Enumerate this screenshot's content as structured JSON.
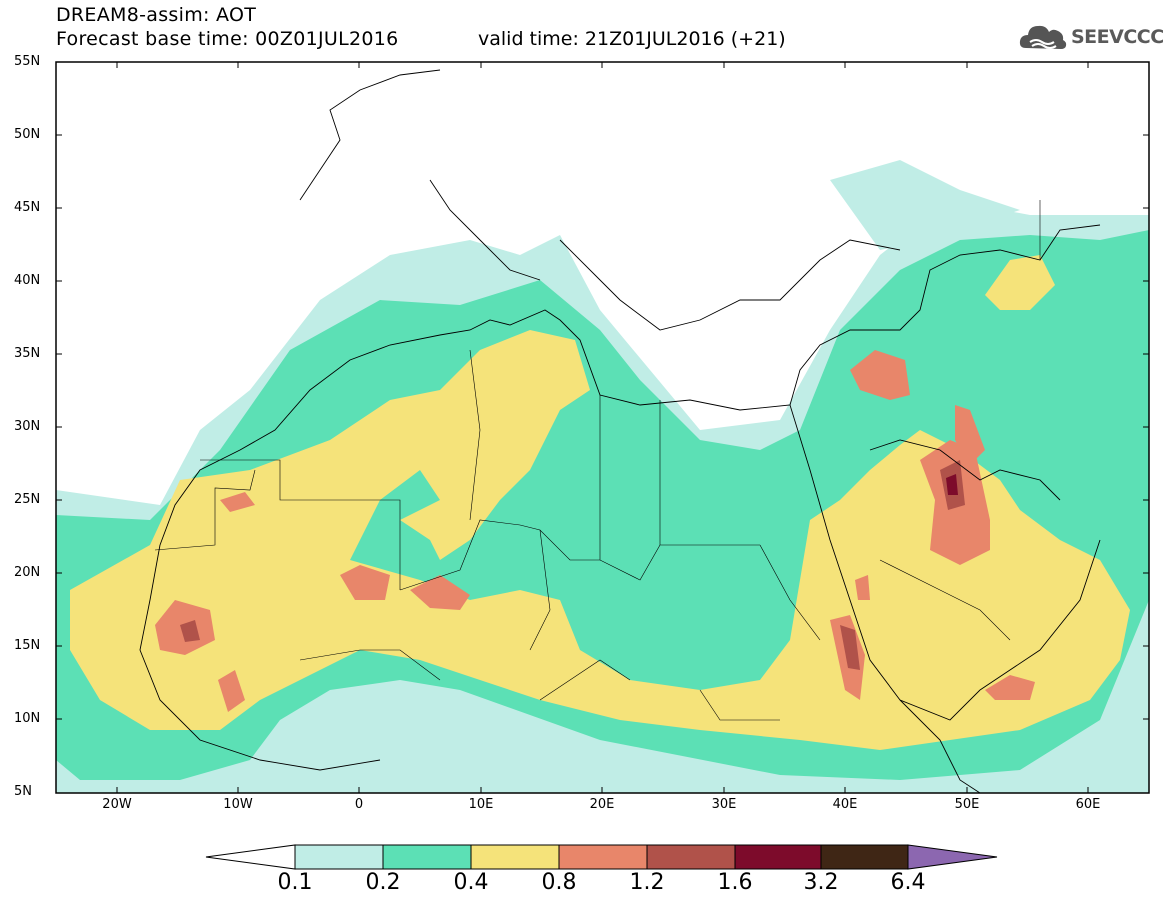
{
  "title": {
    "line1": "DREAM8-assim: AOT",
    "line2": "Forecast base time: 00Z01JUL2016",
    "valid": "valid time: 21Z01JUL2016 (+21)"
  },
  "logo": {
    "text": "SEEVCCC",
    "icon": "cloud-icon"
  },
  "map": {
    "projection": "lat-lon",
    "lon_range": [
      -25,
      65
    ],
    "lat_range": [
      5,
      55
    ],
    "lat_labels": [
      "55N",
      "50N",
      "45N",
      "40N",
      "35N",
      "30N",
      "25N",
      "20N",
      "15N",
      "10N",
      "5N"
    ],
    "lon_labels": [
      "20W",
      "10W",
      "0",
      "10E",
      "20E",
      "30E",
      "40E",
      "50E",
      "60E"
    ]
  },
  "colorbar": {
    "labels": [
      "0.1",
      "0.2",
      "0.4",
      "0.8",
      "1.2",
      "1.6",
      "3.2",
      "6.4"
    ],
    "colors": [
      "#ffffff",
      "#c0ede6",
      "#5ce0b5",
      "#f5e37a",
      "#e8866a",
      "#b0524a",
      "#7d0b2b",
      "#3f2615",
      "#8c67b0"
    ]
  }
}
